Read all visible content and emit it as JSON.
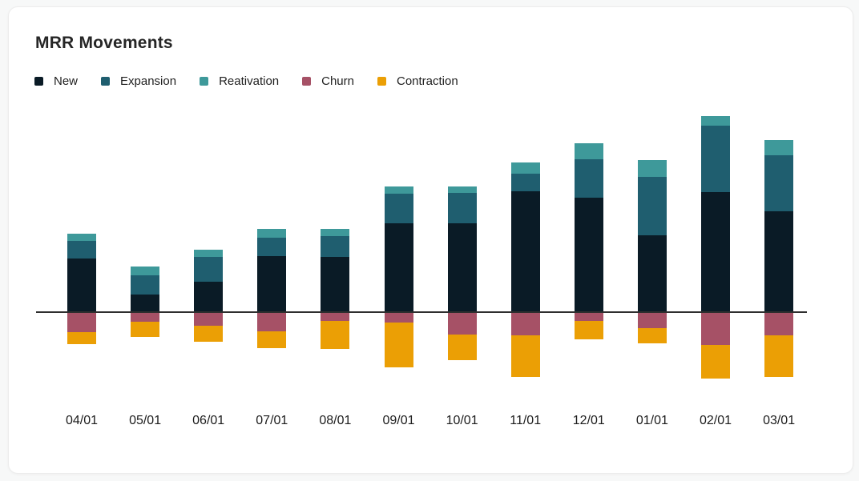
{
  "card": {
    "title": "MRR Movements"
  },
  "colors": {
    "background": "#f7f8f8",
    "card_background": "#ffffff",
    "card_border": "#ececec",
    "axis": "#2e2e2e",
    "text": "#1f1f1f"
  },
  "chart_data": {
    "type": "bar",
    "stacked": true,
    "diverging": true,
    "title": "MRR Movements",
    "xlabel": "",
    "ylabel": "",
    "y_axis_labels_shown": false,
    "grid": false,
    "units": "relative (no y-axis scale shown in chart)",
    "legend_position": "top-left",
    "categories": [
      "04/01",
      "05/01",
      "06/01",
      "07/01",
      "08/01",
      "09/01",
      "10/01",
      "11/01",
      "12/01",
      "01/01",
      "02/01",
      "03/01"
    ],
    "series": [
      {
        "name": "New",
        "color": "#0a1b26",
        "direction": "positive",
        "values": [
          68,
          23,
          39,
          71,
          70,
          112,
          112,
          152,
          144,
          97,
          151,
          127
        ]
      },
      {
        "name": "Expansion",
        "color": "#1f5e6f",
        "direction": "positive",
        "values": [
          22,
          24,
          31,
          23,
          26,
          37,
          38,
          22,
          48,
          73,
          83,
          70
        ]
      },
      {
        "name": "Reativation",
        "color": "#3e999a",
        "direction": "positive",
        "values": [
          9,
          11,
          9,
          11,
          9,
          9,
          8,
          14,
          20,
          21,
          12,
          19
        ]
      },
      {
        "name": "Churn",
        "color": "#a65166",
        "direction": "negative",
        "values": [
          -24,
          -11,
          -16,
          -23,
          -10,
          -12,
          -27,
          -28,
          -10,
          -19,
          -40,
          -28
        ]
      },
      {
        "name": "Contraction",
        "color": "#eb9f05",
        "direction": "negative",
        "values": [
          -15,
          -19,
          -20,
          -21,
          -35,
          -56,
          -32,
          -52,
          -23,
          -19,
          -42,
          -52
        ]
      }
    ]
  }
}
